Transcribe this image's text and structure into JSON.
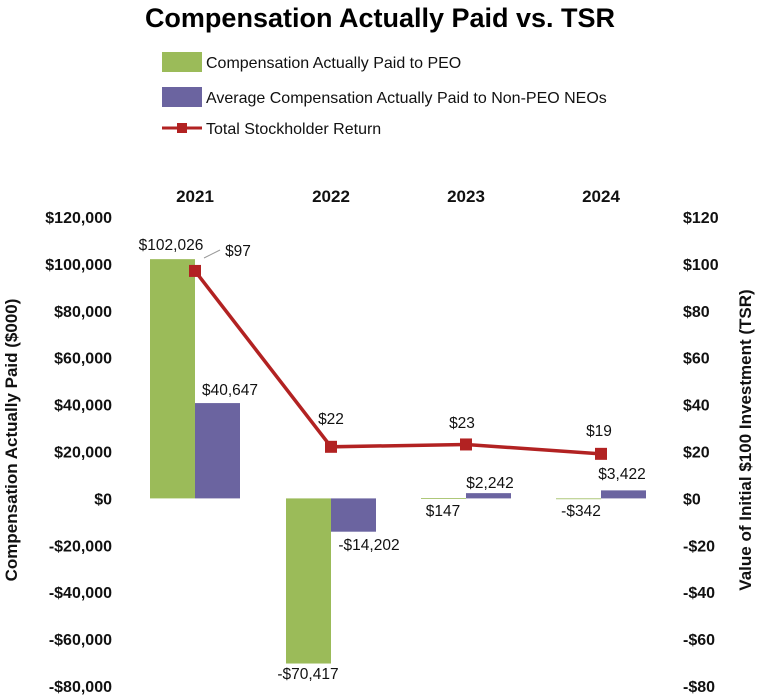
{
  "chart_data": {
    "type": "bar",
    "title": "Compensation Actually Paid vs. TSR",
    "categories": [
      "2021",
      "2022",
      "2023",
      "2024"
    ],
    "series": [
      {
        "name": "Compensation Actually Paid to PEO",
        "kind": "bar",
        "axis": "left",
        "color": "#9bbb59",
        "values": [
          102026,
          -70417,
          147,
          -342
        ],
        "labels": [
          "$102,026",
          "-$70,417",
          "$147",
          "-$342"
        ]
      },
      {
        "name": "Average Compensation Actually Paid to Non-PEO NEOs",
        "kind": "bar",
        "axis": "left",
        "color": "#6b64a0",
        "values": [
          40647,
          -14202,
          2242,
          3422
        ],
        "labels": [
          "$40,647",
          "-$14,202",
          "$2,242",
          "$3,422"
        ]
      },
      {
        "name": "Total Stockholder Return",
        "kind": "line",
        "axis": "right",
        "color": "#b22222",
        "values": [
          97,
          22,
          23,
          19
        ],
        "labels": [
          "$97",
          "$22",
          "$23",
          "$19"
        ]
      }
    ],
    "y_left": {
      "label": "Compensation Actually Paid ($000)",
      "ylim": [
        -80000,
        120000
      ],
      "ticks": [
        120000,
        100000,
        80000,
        60000,
        40000,
        20000,
        0,
        -20000,
        -40000,
        -60000,
        -80000
      ],
      "tick_labels": [
        "$120,000",
        "$100,000",
        "$80,000",
        "$60,000",
        "$40,000",
        "$20,000",
        "$0",
        "-$20,000",
        "-$40,000",
        "-$60,000",
        "-$80,000"
      ]
    },
    "y_right": {
      "label": "Value of Initial $100 Investment (TSR)",
      "ylim": [
        -80,
        120
      ],
      "ticks": [
        120,
        100,
        80,
        60,
        40,
        20,
        0,
        -20,
        -40,
        -60,
        -80
      ],
      "tick_labels": [
        "$120",
        "$100",
        "$80",
        "$60",
        "$40",
        "$20",
        "$0",
        "-$20",
        "-$40",
        "-$60",
        "-$80"
      ]
    },
    "category_axis_position": "top",
    "legend_position": "top",
    "grid": false
  }
}
